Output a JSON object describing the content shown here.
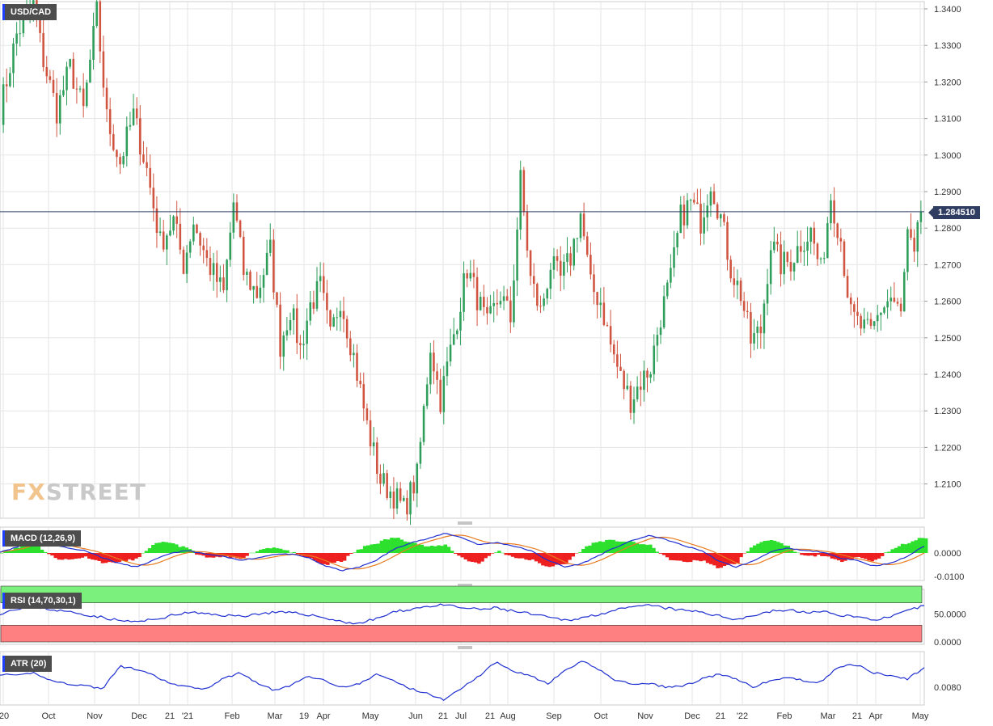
{
  "symbol": "USD/CAD",
  "last_price": "1.284510",
  "watermark": {
    "a": "FX",
    "b": "STREET"
  },
  "panels": {
    "macd": {
      "label": "MACD (12,26,9)",
      "ticks": [
        "0.0000",
        "-0.0100"
      ]
    },
    "rsi": {
      "label": "RSI (14,70,30,1)",
      "ticks": [
        "50.0000",
        "0.0000"
      ]
    },
    "atr": {
      "label": "ATR (20)",
      "ticks": [
        "0.0080"
      ]
    }
  },
  "colors": {
    "up": "#2e9e5a",
    "down": "#d0543f",
    "line": "#1f2fd0",
    "signal": "#e87c1e",
    "hist_pos": "#2ee02e",
    "hist_neg": "#ee1f1f",
    "overbought": "#7cf07c",
    "oversold": "#ff8080",
    "last": "#2f3d63"
  },
  "chart_data": {
    "type": "candlestick",
    "title": "USD/CAD",
    "y_ticks": [
      "1.3400",
      "1.3300",
      "1.3200",
      "1.3100",
      "1.3000",
      "1.2900",
      "1.2800",
      "1.2700",
      "1.2600",
      "1.2500",
      "1.2400",
      "1.2300",
      "1.2200",
      "1.2100"
    ],
    "ylim": [
      1.201,
      1.341
    ],
    "last": 1.28451,
    "x_ticks": [
      "'20",
      "Oct",
      "Nov",
      "Dec",
      "21",
      "'21",
      "Feb",
      "Mar",
      "19",
      "Apr",
      "May",
      "Jun",
      "21",
      "Jul",
      "21",
      "Aug",
      "Sep",
      "Oct",
      "Nov",
      "Dec",
      "21",
      "'22",
      "Feb",
      "Mar",
      "21",
      "Apr",
      "May"
    ],
    "anchors": [
      [
        0,
        1.312
      ],
      [
        5,
        1.333
      ],
      [
        10,
        1.341
      ],
      [
        13,
        1.326
      ],
      [
        17,
        1.312
      ],
      [
        21,
        1.324
      ],
      [
        25,
        1.312
      ],
      [
        29,
        1.339
      ],
      [
        32,
        1.31
      ],
      [
        36,
        1.298
      ],
      [
        40,
        1.311
      ],
      [
        44,
        1.296
      ],
      [
        48,
        1.276
      ],
      [
        52,
        1.282
      ],
      [
        55,
        1.27
      ],
      [
        58,
        1.282
      ],
      [
        62,
        1.271
      ],
      [
        67,
        1.262
      ],
      [
        70,
        1.287
      ],
      [
        73,
        1.268
      ],
      [
        77,
        1.262
      ],
      [
        81,
        1.274
      ],
      [
        84,
        1.248
      ],
      [
        87,
        1.258
      ],
      [
        90,
        1.247
      ],
      [
        93,
        1.259
      ],
      [
        96,
        1.264
      ],
      [
        99,
        1.25
      ],
      [
        102,
        1.261
      ],
      [
        106,
        1.245
      ],
      [
        110,
        1.226
      ],
      [
        114,
        1.211
      ],
      [
        118,
        1.207
      ],
      [
        121,
        1.203
      ],
      [
        125,
        1.212
      ],
      [
        129,
        1.248
      ],
      [
        132,
        1.233
      ],
      [
        136,
        1.251
      ],
      [
        140,
        1.269
      ],
      [
        143,
        1.261
      ],
      [
        146,
        1.253
      ],
      [
        150,
        1.262
      ],
      [
        153,
        1.255
      ],
      [
        156,
        1.293
      ],
      [
        159,
        1.266
      ],
      [
        162,
        1.257
      ],
      [
        165,
        1.27
      ],
      [
        168,
        1.266
      ],
      [
        171,
        1.272
      ],
      [
        174,
        1.284
      ],
      [
        177,
        1.264
      ],
      [
        180,
        1.26
      ],
      [
        183,
        1.248
      ],
      [
        186,
        1.239
      ],
      [
        189,
        1.233
      ],
      [
        192,
        1.238
      ],
      [
        195,
        1.242
      ],
      [
        198,
        1.256
      ],
      [
        201,
        1.266
      ],
      [
        204,
        1.283
      ],
      [
        207,
        1.287
      ],
      [
        210,
        1.282
      ],
      [
        213,
        1.293
      ],
      [
        216,
        1.283
      ],
      [
        219,
        1.269
      ],
      [
        222,
        1.262
      ],
      [
        225,
        1.249
      ],
      [
        228,
        1.252
      ],
      [
        231,
        1.276
      ],
      [
        234,
        1.27
      ],
      [
        237,
        1.271
      ],
      [
        240,
        1.276
      ],
      [
        243,
        1.279
      ],
      [
        246,
        1.268
      ],
      [
        249,
        1.289
      ],
      [
        252,
        1.277
      ],
      [
        255,
        1.256
      ],
      [
        258,
        1.253
      ],
      [
        261,
        1.251
      ],
      [
        264,
        1.258
      ],
      [
        267,
        1.261
      ],
      [
        270,
        1.256
      ],
      [
        272,
        1.278
      ],
      [
        274,
        1.271
      ],
      [
        276,
        1.285
      ]
    ],
    "macd": [
      0.0005,
      0.0025,
      0.0055,
      0.004,
      0.002,
      0.001,
      -0.002,
      -0.0045,
      -0.006,
      -0.003,
      0.0,
      0.001,
      -0.0005,
      -0.0015,
      -0.003,
      -0.0022,
      -0.0005,
      -0.0005,
      -0.002,
      -0.0055,
      -0.0075,
      -0.006,
      -0.003,
      0.0015,
      0.0045,
      0.006,
      0.0085,
      0.0065,
      0.0035,
      0.0045,
      0.003,
      0.001,
      -0.003,
      -0.006,
      -0.0045,
      -0.001,
      0.0025,
      0.0055,
      0.0075,
      0.0055,
      0.003,
      0.001,
      -0.0035,
      -0.006,
      -0.0035,
      0.0005,
      0.002,
      0.001,
      0.0005,
      -0.002,
      -0.003,
      -0.0055,
      -0.0045,
      -0.0015,
      0.003
    ],
    "rsi": [
      51,
      60,
      64,
      58,
      54,
      49,
      44,
      38,
      36,
      40,
      47,
      53,
      50,
      48,
      46,
      50,
      53,
      52,
      49,
      43,
      36,
      33,
      42,
      53,
      59,
      64,
      66,
      61,
      58,
      61,
      55,
      50,
      44,
      39,
      43,
      50,
      57,
      62,
      66,
      60,
      56,
      54,
      46,
      41,
      47,
      55,
      57,
      53,
      54,
      49,
      45,
      40,
      44,
      55,
      65
    ],
    "atr": [
      0.0088,
      0.0087,
      0.0089,
      0.0084,
      0.0082,
      0.0081,
      0.0079,
      0.0093,
      0.0091,
      0.0087,
      0.0082,
      0.008,
      0.0079,
      0.0085,
      0.0089,
      0.0083,
      0.0078,
      0.0081,
      0.0087,
      0.0084,
      0.008,
      0.0082,
      0.0088,
      0.0084,
      0.0079,
      0.0076,
      0.0072,
      0.008,
      0.0087,
      0.0096,
      0.009,
      0.0087,
      0.0082,
      0.009,
      0.0096,
      0.0091,
      0.0084,
      0.0082,
      0.0082,
      0.008,
      0.0081,
      0.0085,
      0.0088,
      0.0085,
      0.008,
      0.0084,
      0.0086,
      0.0084,
      0.0083,
      0.0093,
      0.0094,
      0.0089,
      0.0087,
      0.0085,
      0.0092
    ]
  }
}
